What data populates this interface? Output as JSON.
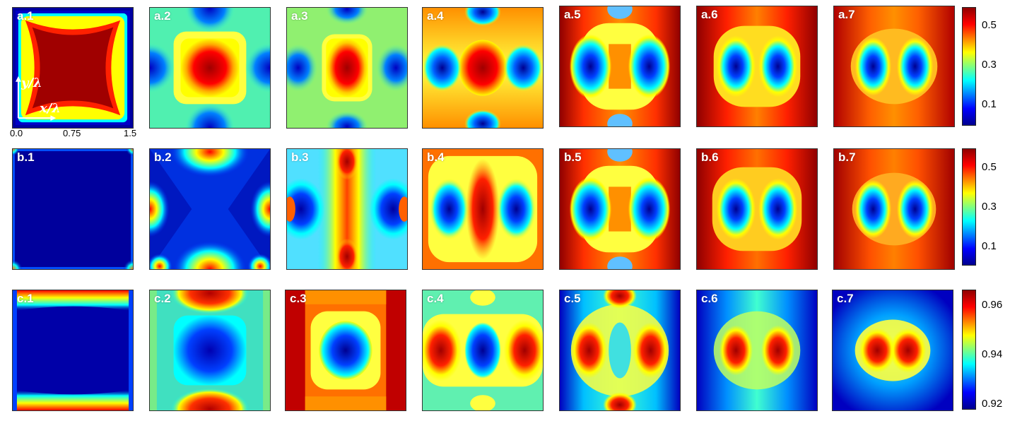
{
  "rows": [
    {
      "id": "a",
      "labels": [
        "a.1",
        "a.2",
        "a.3",
        "a.4",
        "a.5",
        "a.6",
        "a.7"
      ]
    },
    {
      "id": "b",
      "labels": [
        "b.1",
        "b.2",
        "b.3",
        "b.4",
        "b.5",
        "b.6",
        "b.7"
      ]
    },
    {
      "id": "c",
      "labels": [
        "c.1",
        "c.2",
        "c.3",
        "c.4",
        "c.5",
        "c.6",
        "c.7"
      ]
    }
  ],
  "axes": {
    "y_label": "y/λ",
    "x_label": "x/λ",
    "x_ticks": [
      "0.0",
      "0.75",
      "1.5"
    ]
  },
  "colorbars": [
    {
      "ticks": [
        "0.5",
        "0.3",
        "0.1"
      ]
    },
    {
      "ticks": [
        "0.5",
        "0.3",
        "0.1"
      ]
    },
    {
      "ticks": [
        "0.96",
        "0.94",
        "0.92"
      ]
    }
  ],
  "colors": {
    "dark_red": "#7f0000",
    "red": "#ff0000",
    "yellow": "#ffff00",
    "cyan": "#00ffff",
    "blue": "#0000ff",
    "dark_blue": "#00008f"
  }
}
